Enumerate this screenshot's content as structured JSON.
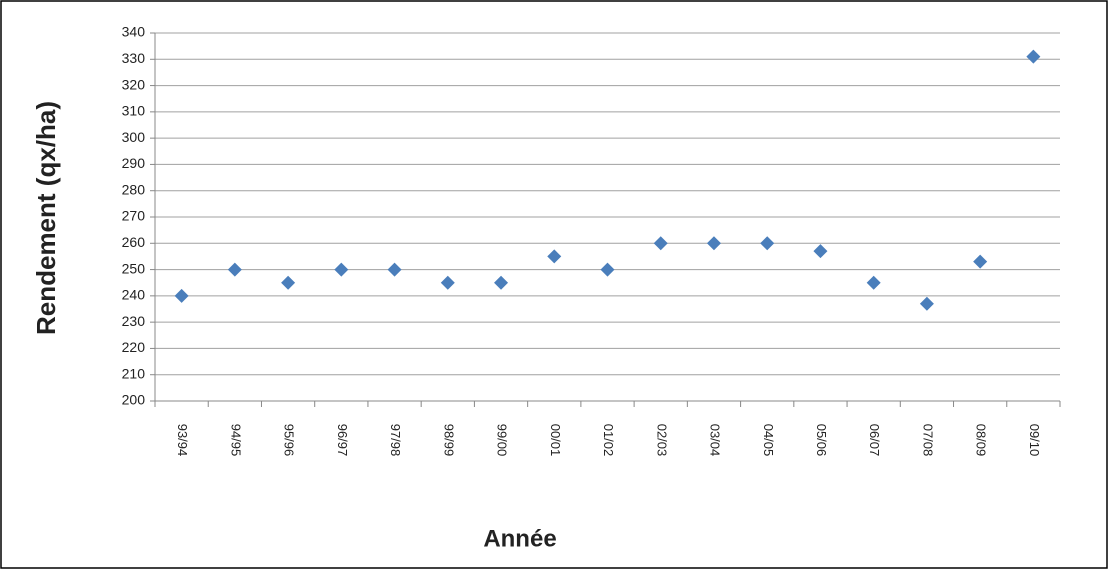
{
  "chart_data": {
    "type": "line",
    "x_label": "Année",
    "y_label": "Rendement (qx/ha)",
    "categories": [
      "93/94",
      "94/95",
      "95/96",
      "96/97",
      "97/98",
      "98/99",
      "99/00",
      "00/01",
      "01/02",
      "02/03",
      "03/04",
      "04/05",
      "05/06",
      "06/07",
      "07/08",
      "08/09",
      "09/10"
    ],
    "series": [
      {
        "name": "Rendement",
        "color": "#4a7ebb",
        "values": [
          240,
          250,
          245,
          250,
          250,
          245,
          245,
          255,
          250,
          260,
          260,
          260,
          257,
          245,
          237,
          253,
          331
        ]
      }
    ],
    "ylim": [
      200,
      340
    ],
    "yticks": [
      200,
      210,
      220,
      230,
      240,
      250,
      260,
      270,
      280,
      290,
      300,
      310,
      320,
      330,
      340
    ],
    "grid": true
  }
}
